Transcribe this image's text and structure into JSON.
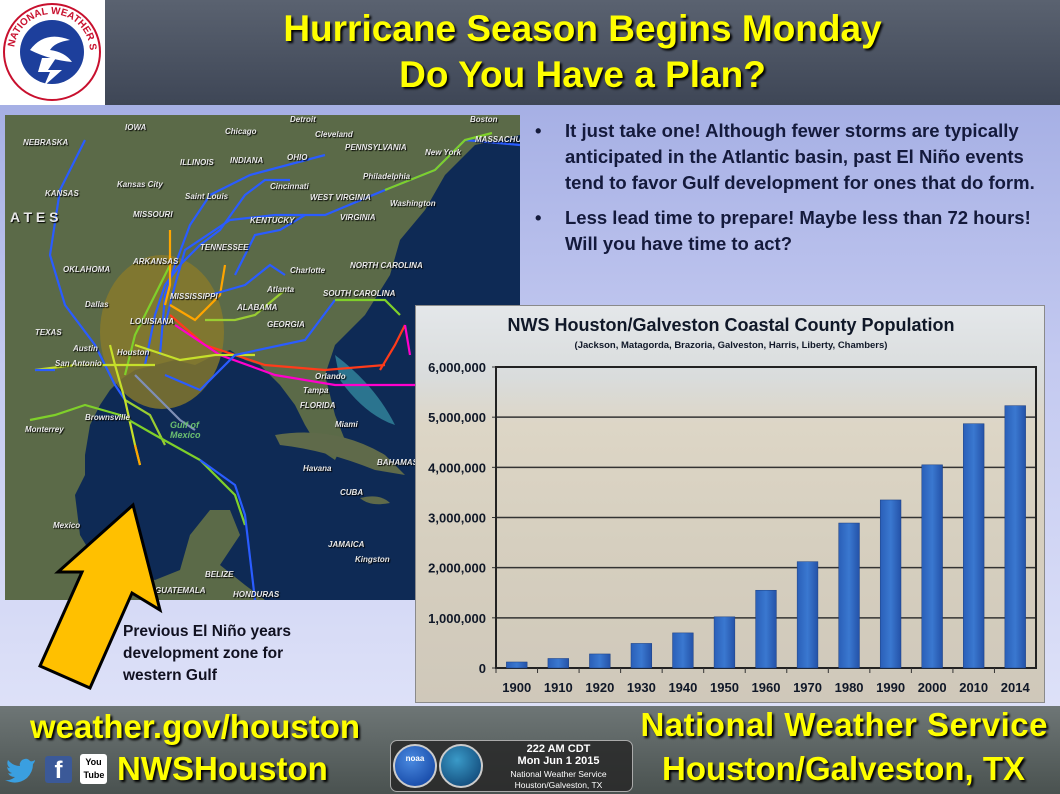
{
  "header": {
    "line1": "Hurricane Season Begins Monday",
    "line2": "Do You Have a Plan?",
    "logo_text": "NATIONAL WEATHER SERVICE"
  },
  "bullets": [
    "It just take one! Although fewer storms are typically anticipated in the Atlantic basin, past El Niño events tend to favor Gulf development for ones that do form.",
    "Less lead time to prepare! Maybe less than 72 hours! Will you have time to act?"
  ],
  "map": {
    "labels": [
      "NEBRASKA",
      "IOWA",
      "Chicago",
      "Detroit",
      "Cleveland",
      "Boston",
      "MASSACHUS",
      "ILLINOIS",
      "INDIANA",
      "OHIO",
      "PENNSYLVANIA",
      "New York",
      "Kansas City",
      "Saint Louis",
      "Cincinnati",
      "Philadelphia",
      "KANSAS",
      "A T E S",
      "MISSOURI",
      "KENTUCKY",
      "WEST VIRGINIA",
      "Washington",
      "VIRGINIA",
      "TENNESSEE",
      "ARKANSAS",
      "OKLAHOMA",
      "Charlotte",
      "NORTH CAROLINA",
      "Atlanta",
      "SOUTH CAROLINA",
      "Dallas",
      "MISSISSIPPI",
      "ALABAMA",
      "LOUISIANA",
      "GEORGIA",
      "TEXAS",
      "Austin",
      "San Antonio",
      "Houston",
      "Orlando",
      "Tampa",
      "FLORIDA",
      "Miami",
      "Monterrey",
      "Brownsville",
      "Gulf of Mexico",
      "Havana",
      "BAHAMAS",
      "CUBA",
      "Mexico",
      "JAMAICA",
      "Kingston",
      "BELIZE",
      "GUATEMALA",
      "HONDURAS"
    ]
  },
  "annotation": {
    "line1": "Previous El Niño years",
    "line2": "development zone for",
    "line3": "western Gulf"
  },
  "chart_data": {
    "type": "bar",
    "title": "NWS Houston/Galveston Coastal County Population",
    "subtitle": "(Jackson, Matagorda, Brazoria,  Galveston, Harris, Liberty, Chambers)",
    "categories": [
      "1900",
      "1910",
      "1920",
      "1930",
      "1940",
      "1950",
      "1960",
      "1970",
      "1980",
      "1990",
      "2000",
      "2010",
      "2014"
    ],
    "values": [
      120000,
      190000,
      280000,
      490000,
      700000,
      1020000,
      1550000,
      2120000,
      2890000,
      3350000,
      4050000,
      4870000,
      5230000
    ],
    "ylim": [
      0,
      6000000
    ],
    "yticks": [
      "0",
      "1,000,000",
      "2,000,000",
      "3,000,000",
      "4,000,000",
      "5,000,000",
      "6,000,000"
    ],
    "grid": true,
    "bar_color": "#3a78d0"
  },
  "footer": {
    "url": "weather.gov/houston",
    "handle": "NWSHouston",
    "org": "National Weather Service",
    "office": "Houston/Galveston, TX",
    "social_icons": [
      "twitter-icon",
      "facebook-icon",
      "youtube-icon"
    ],
    "youtube_text": "You Tube"
  },
  "badge": {
    "time": "222 AM CDT",
    "date": "Mon Jun 1 2015",
    "org": "National Weather Service",
    "office": "Houston/Galveston, TX",
    "noaa": "noaa"
  },
  "colors": {
    "title": "#ffff00",
    "arrow": "#ffc000",
    "zone": "#8a7a2a"
  }
}
